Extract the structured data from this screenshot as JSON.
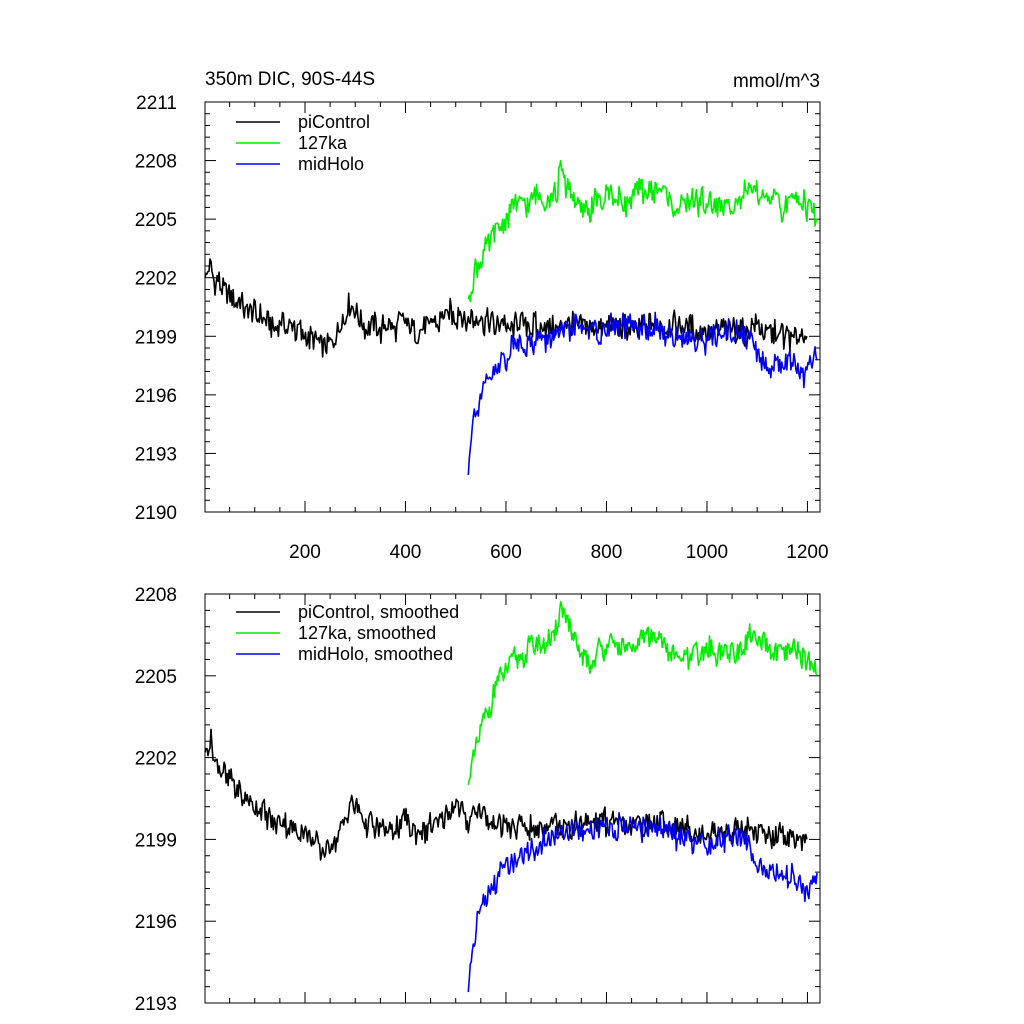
{
  "figure": {
    "left_title": "350m DIC, 90S-44S",
    "right_title": "mmol/m^3"
  },
  "chart_data": [
    {
      "type": "line",
      "title": "350m DIC, 90S-44S",
      "units": "mmol/m^3",
      "xlim": [
        1,
        1225
      ],
      "ylim": [
        2190,
        2211
      ],
      "x_ticks": [
        200,
        400,
        600,
        800,
        1000,
        1200
      ],
      "x_tick_labels": [
        "200",
        "400",
        "600",
        "800",
        "1000",
        "1200"
      ],
      "y_ticks": [
        2190,
        2193,
        2196,
        2199,
        2202,
        2205,
        2208,
        2211
      ],
      "y_tick_labels": [
        "2190",
        "2193",
        "2196",
        "2199",
        "2202",
        "2205",
        "2208",
        "2211"
      ],
      "grid": false,
      "legend_position": "top-left",
      "series": [
        {
          "name": "piControl",
          "color": "#000000",
          "x": [
            1,
            10,
            20,
            40,
            60,
            80,
            100,
            120,
            150,
            180,
            200,
            220,
            240,
            260,
            290,
            320,
            350,
            380,
            400,
            420,
            450,
            480,
            500,
            520,
            540,
            560,
            600,
            650,
            700,
            750,
            800,
            850,
            900,
            950,
            1000,
            1050,
            1100,
            1150,
            1200
          ],
          "values": [
            2202.0,
            2203.0,
            2201.8,
            2201.3,
            2200.8,
            2200.4,
            2200.0,
            2199.8,
            2199.6,
            2199.5,
            2199.2,
            2198.6,
            2198.5,
            2199.0,
            2200.5,
            2199.6,
            2199.3,
            2199.4,
            2199.8,
            2199.0,
            2199.5,
            2200.0,
            2200.3,
            2199.6,
            2199.9,
            2199.8,
            2199.5,
            2199.4,
            2199.6,
            2199.5,
            2199.7,
            2199.4,
            2199.6,
            2199.4,
            2199.2,
            2199.3,
            2199.3,
            2199.1,
            2199.0
          ]
        },
        {
          "name": "127ka",
          "color": "#00ee00",
          "x": [
            525,
            540,
            560,
            580,
            600,
            620,
            650,
            680,
            700,
            710,
            730,
            760,
            800,
            830,
            850,
            870,
            900,
            930,
            960,
            1000,
            1030,
            1060,
            1090,
            1120,
            1150,
            1180,
            1200,
            1220
          ],
          "values": [
            2200.9,
            2202.3,
            2203.6,
            2204.6,
            2205.2,
            2205.7,
            2206.0,
            2206.2,
            2206.5,
            2207.4,
            2206.4,
            2205.4,
            2206.2,
            2206.1,
            2205.8,
            2206.4,
            2206.6,
            2205.8,
            2205.6,
            2206.0,
            2205.8,
            2205.9,
            2206.5,
            2206.1,
            2205.6,
            2205.9,
            2205.6,
            2205.0
          ]
        },
        {
          "name": "midHolo",
          "color": "#0000ee",
          "x": [
            525,
            530,
            540,
            550,
            560,
            580,
            600,
            620,
            650,
            680,
            700,
            750,
            800,
            850,
            900,
            950,
            1000,
            1050,
            1080,
            1100,
            1120,
            1150,
            1180,
            1200,
            1210,
            1220
          ],
          "values": [
            2191.9,
            2194.0,
            2195.2,
            2196.0,
            2196.8,
            2197.4,
            2198.0,
            2198.4,
            2198.7,
            2198.9,
            2199.2,
            2199.3,
            2199.5,
            2199.5,
            2199.4,
            2199.0,
            2198.8,
            2199.2,
            2199.0,
            2198.0,
            2197.6,
            2197.8,
            2197.5,
            2196.8,
            2197.5,
            2197.8
          ]
        }
      ]
    },
    {
      "type": "line",
      "xlim": [
        1,
        1225
      ],
      "ylim": [
        2193,
        2208
      ],
      "x_ticks": [
        200,
        400,
        600,
        800,
        1000,
        1200
      ],
      "y_ticks": [
        2193,
        2196,
        2199,
        2202,
        2205,
        2208
      ],
      "y_tick_labels": [
        "2193",
        "2196",
        "2199",
        "2202",
        "2205",
        "2208"
      ],
      "grid": false,
      "legend_position": "top-left",
      "series": [
        {
          "name": "piControl, smoothed",
          "color": "#000000",
          "x": [
            1,
            10,
            20,
            40,
            60,
            80,
            100,
            120,
            150,
            180,
            200,
            220,
            240,
            260,
            290,
            320,
            350,
            380,
            400,
            420,
            450,
            480,
            500,
            520,
            540,
            560,
            600,
            650,
            700,
            750,
            800,
            850,
            900,
            950,
            1000,
            1050,
            1100,
            1150,
            1200
          ],
          "values": [
            2202.2,
            2202.8,
            2201.8,
            2201.4,
            2200.9,
            2200.5,
            2200.1,
            2199.9,
            2199.6,
            2199.5,
            2199.3,
            2198.8,
            2198.6,
            2199.0,
            2200.4,
            2199.6,
            2199.3,
            2199.4,
            2199.8,
            2199.1,
            2199.5,
            2200.0,
            2200.3,
            2199.7,
            2199.9,
            2199.8,
            2199.5,
            2199.4,
            2199.6,
            2199.5,
            2199.7,
            2199.4,
            2199.6,
            2199.4,
            2199.2,
            2199.3,
            2199.3,
            2199.1,
            2199.0
          ]
        },
        {
          "name": "127ka, smoothed",
          "color": "#00ee00",
          "x": [
            525,
            540,
            560,
            580,
            600,
            620,
            650,
            680,
            700,
            710,
            730,
            760,
            800,
            830,
            850,
            870,
            900,
            930,
            960,
            1000,
            1030,
            1060,
            1090,
            1120,
            1150,
            1180,
            1200,
            1220
          ],
          "values": [
            2201.0,
            2202.4,
            2203.6,
            2204.6,
            2205.2,
            2205.7,
            2206.0,
            2206.2,
            2206.5,
            2207.7,
            2206.4,
            2205.4,
            2206.2,
            2206.1,
            2205.8,
            2206.4,
            2206.6,
            2205.8,
            2205.6,
            2206.0,
            2205.8,
            2205.9,
            2206.5,
            2206.1,
            2205.6,
            2205.9,
            2205.6,
            2205.0
          ]
        },
        {
          "name": "midHolo, smoothed",
          "color": "#0000ee",
          "x": [
            525,
            530,
            540,
            550,
            560,
            580,
            600,
            620,
            650,
            680,
            700,
            750,
            800,
            850,
            900,
            950,
            1000,
            1050,
            1080,
            1100,
            1120,
            1150,
            1180,
            1200,
            1210,
            1220
          ],
          "values": [
            2193.4,
            2194.6,
            2195.6,
            2196.4,
            2196.9,
            2197.4,
            2198.0,
            2198.4,
            2198.7,
            2198.9,
            2199.2,
            2199.3,
            2199.5,
            2199.5,
            2199.4,
            2199.0,
            2198.8,
            2199.2,
            2199.0,
            2198.0,
            2197.6,
            2197.8,
            2197.5,
            2196.8,
            2197.5,
            2197.8
          ]
        }
      ]
    }
  ]
}
